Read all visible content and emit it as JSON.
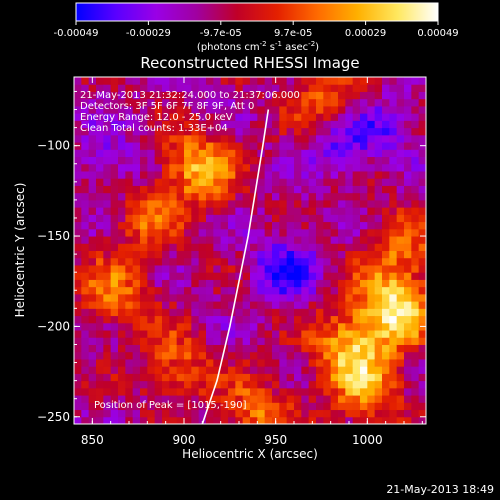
{
  "colorbar": {
    "ticks": [
      "-0.00049",
      "-0.00029",
      "-9.7e-05",
      "9.7e-05",
      "0.00029",
      "0.00049"
    ],
    "unit_main": "(photons cm",
    "unit_sup1": "-2",
    "unit_mid1": " s",
    "unit_sup2": "-1",
    "unit_mid2": " asec",
    "unit_sup3": "-2",
    "unit_end": ")",
    "colors": [
      "#0000ff",
      "#5a00ff",
      "#9a00e6",
      "#a000a0",
      "#c00028",
      "#e42000",
      "#ff6a00",
      "#ffb000",
      "#ffe860",
      "#ffffff"
    ]
  },
  "chart_data": {
    "type": "heatmap",
    "title": "Reconstructed RHESSI Image",
    "xlabel": "Heliocentric X (arcsec)",
    "ylabel": "Heliocentric Y (arcsec)",
    "xlim": [
      840,
      1032
    ],
    "ylim": [
      -254,
      -62
    ],
    "xticks": [
      850,
      900,
      950,
      1000
    ],
    "yticks": [
      -100,
      -150,
      -200,
      -250
    ],
    "colorbar_range": [
      -0.00049,
      0.00049
    ],
    "limb_curve": [
      [
        910,
        -254
      ],
      [
        918,
        -230
      ],
      [
        925,
        -200
      ],
      [
        930,
        -175
      ],
      [
        935,
        -150
      ],
      [
        939,
        -125
      ],
      [
        943,
        -100
      ],
      [
        946,
        -80
      ]
    ],
    "bright_sources": [
      {
        "x": 1015,
        "y": -190,
        "strength": 1.0
      },
      {
        "x": 990,
        "y": -210,
        "strength": 0.75
      },
      {
        "x": 1000,
        "y": -235,
        "strength": 0.6
      },
      {
        "x": 908,
        "y": -112,
        "strength": 0.8
      },
      {
        "x": 862,
        "y": -182,
        "strength": 0.55
      },
      {
        "x": 940,
        "y": -248,
        "strength": 0.55
      },
      {
        "x": 895,
        "y": -222,
        "strength": 0.5
      },
      {
        "x": 1018,
        "y": -155,
        "strength": 0.5
      },
      {
        "x": 975,
        "y": -72,
        "strength": 0.45
      },
      {
        "x": 880,
        "y": -140,
        "strength": 0.45
      }
    ],
    "dark_regions": [
      {
        "x": 955,
        "y": -168,
        "strength": 1.0
      },
      {
        "x": 860,
        "y": -110,
        "strength": 0.6
      },
      {
        "x": 985,
        "y": -100,
        "strength": 0.7
      },
      {
        "x": 1010,
        "y": -90,
        "strength": 0.6
      }
    ],
    "annotations": [
      "21-May-2013 21:32:24.000 to 21:37:06.000",
      "Detectors: 3F 5F 6F 7F 8F 9F, Att 0",
      "Energy Range: 12.0 - 25.0 keV",
      "Clean     Total counts: 1.33E+04"
    ],
    "peak_label": "Position of Peak = [1015,-190]"
  },
  "footer": "21-May-2013 18:49"
}
